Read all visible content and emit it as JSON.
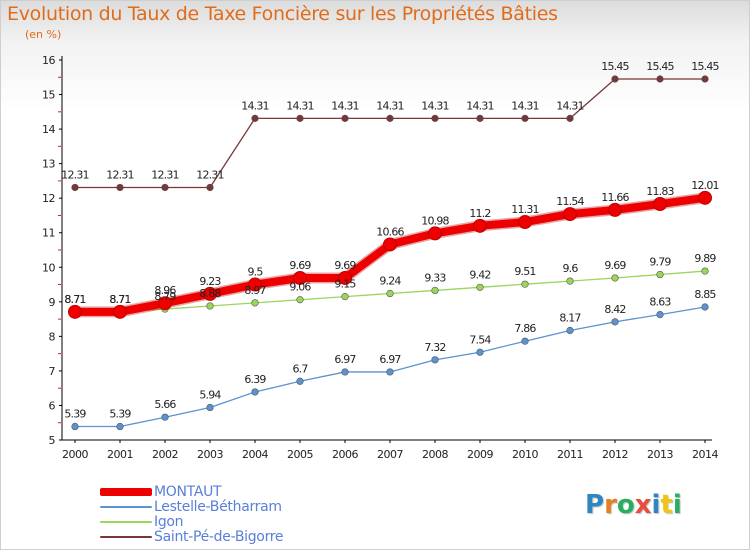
{
  "header": {
    "title": "Evolution du Taux de Taxe Foncière sur les Propriétés Bâties",
    "subtitle": "(en %)"
  },
  "logo": {
    "letters": [
      {
        "ch": "P",
        "color": "#2e86c1"
      },
      {
        "ch": "r",
        "color": "#e67e22"
      },
      {
        "ch": "o",
        "color": "#27ae60"
      },
      {
        "ch": "x",
        "color": "#e74c3c"
      },
      {
        "ch": "i",
        "color": "#2e86c1"
      },
      {
        "ch": "t",
        "color": "#f1c40f"
      },
      {
        "ch": "i",
        "color": "#27ae60"
      }
    ]
  },
  "chart_data": {
    "type": "line",
    "title": "Evolution du Taux de Taxe Foncière sur les Propriétés Bâties",
    "ylabel": "(en %)",
    "x": [
      "2000",
      "2001",
      "2002",
      "2003",
      "2004",
      "2005",
      "2006",
      "2007",
      "2008",
      "2009",
      "2010",
      "2011",
      "2012",
      "2013",
      "2014"
    ],
    "ylim": [
      5,
      16
    ],
    "yticks": [
      "5",
      "6",
      "7",
      "8",
      "9",
      "10",
      "11",
      "12",
      "13",
      "14",
      "15",
      "16"
    ],
    "grid": false,
    "legend": "bottom-left",
    "series": [
      {
        "name": "Saint-Pé-de-Bigorre",
        "color": "#7a3636",
        "labels": [
          "12.31",
          "12.31",
          "12.31",
          "12.31",
          "14.31",
          "14.31",
          "14.31",
          "14.31",
          "14.31",
          "14.31",
          "14.31",
          "14.31",
          "15.45",
          "15.45",
          "15.45"
        ],
        "values": [
          12.31,
          12.31,
          12.31,
          12.31,
          14.31,
          14.31,
          14.31,
          14.31,
          14.31,
          14.31,
          14.31,
          14.31,
          15.45,
          15.45,
          15.45
        ]
      },
      {
        "name": "Igon",
        "color": "#99d65a",
        "labels": [
          "8.71",
          "8.71",
          "8.79",
          "8.88",
          "8.97",
          "9.06",
          "9.15",
          "9.24",
          "9.33",
          "9.42",
          "9.51",
          "9.6",
          "9.69",
          "9.79",
          "9.89"
        ],
        "values": [
          8.71,
          8.71,
          8.79,
          8.88,
          8.97,
          9.06,
          9.15,
          9.24,
          9.33,
          9.42,
          9.51,
          9.6,
          9.69,
          9.79,
          9.89
        ]
      },
      {
        "name": "Lestelle-Bétharram",
        "color": "#5a93cf",
        "labels": [
          "5.39",
          "5.39",
          "5.66",
          "5.94",
          "6.39",
          "6.7",
          "6.97",
          "6.97",
          "7.32",
          "7.54",
          "7.86",
          "8.17",
          "8.42",
          "8.63",
          "8.85"
        ],
        "values": [
          5.39,
          5.39,
          5.66,
          5.94,
          6.39,
          6.7,
          6.97,
          6.97,
          7.32,
          7.54,
          7.86,
          8.17,
          8.42,
          8.63,
          8.85
        ]
      },
      {
        "name": "MONTAUT",
        "color": "#ee0000",
        "labels": [
          "8.71",
          "8.71",
          "8.96",
          "9.23",
          "9.5",
          "9.69",
          "9.69",
          "10.66",
          "10.98",
          "11.2",
          "11.31",
          "11.54",
          "11.66",
          "11.83",
          "12.01"
        ],
        "values": [
          8.71,
          8.71,
          8.96,
          9.23,
          9.5,
          9.69,
          9.69,
          10.66,
          10.98,
          11.2,
          11.31,
          11.54,
          11.66,
          11.83,
          12.01
        ]
      }
    ],
    "legend_order": [
      "MONTAUT",
      "Lestelle-Bétharram",
      "Igon",
      "Saint-Pé-de-Bigorre"
    ]
  }
}
